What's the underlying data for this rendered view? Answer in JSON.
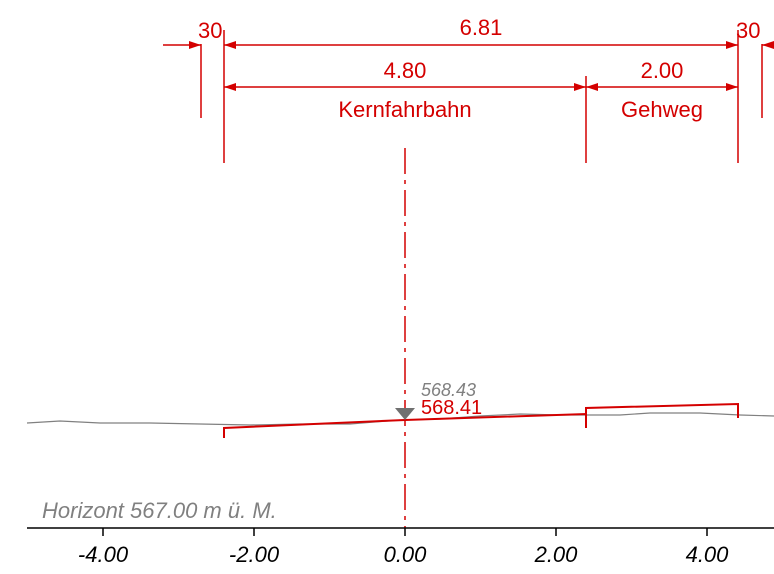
{
  "dimensions": {
    "overall": "6.81",
    "left_offset": "30",
    "right_offset": "30",
    "roadway_width": "4.80",
    "sidewalk_width": "2.00"
  },
  "labels": {
    "roadway": "Kernfahrbahn",
    "sidewalk": "Gehweg",
    "terrain_elevation": "568.43",
    "design_elevation": "568.41",
    "horizon": "Horizont 567.00 m ü. M."
  },
  "axis": {
    "ticks": [
      "-4.00",
      "-2.00",
      "0.00",
      "2.00",
      "4.00"
    ]
  },
  "colors": {
    "design": "#d40000",
    "terrain": "#808080",
    "axis": "#000000"
  }
}
